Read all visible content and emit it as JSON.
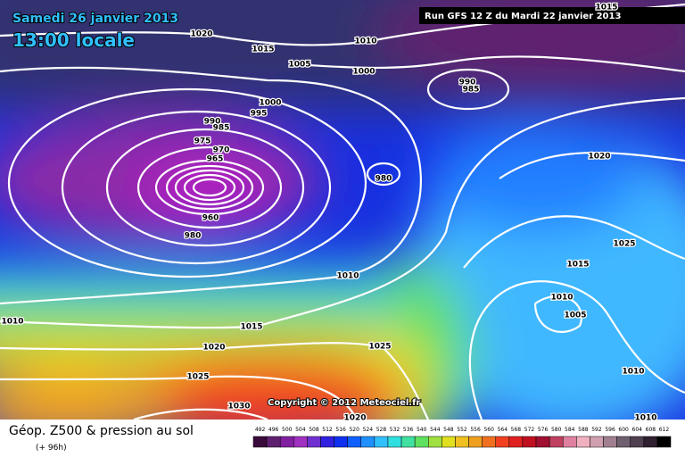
{
  "header": {
    "date": "Samedi 26 janvier 2013",
    "time": "13:00 locale",
    "run": "Run GFS 12 Z du Mardi 22 janvier 2013"
  },
  "isobars": {
    "labels": [
      "1020",
      "1015",
      "1010",
      "1005",
      "1000",
      "1000",
      "995",
      "990",
      "985",
      "975",
      "970",
      "965",
      "990",
      "985",
      "980",
      "960",
      "980",
      "1010",
      "1010",
      "1015",
      "1020",
      "1025",
      "1030",
      "1025",
      "1020",
      "1020",
      "1025",
      "1015",
      "1010",
      "1005",
      "1010",
      "1010",
      "1015"
    ]
  },
  "copyright": "Copyright © 2012 Meteociel.fr",
  "legend": {
    "title": "Géop. Z500 & pression au sol",
    "lead": "(+ 96h)",
    "scale": [
      492,
      496,
      500,
      504,
      508,
      512,
      516,
      520,
      524,
      528,
      532,
      536,
      540,
      544,
      548,
      552,
      556,
      560,
      564,
      568,
      572,
      576,
      580,
      584,
      588,
      592,
      596,
      600,
      604,
      608,
      612
    ]
  }
}
